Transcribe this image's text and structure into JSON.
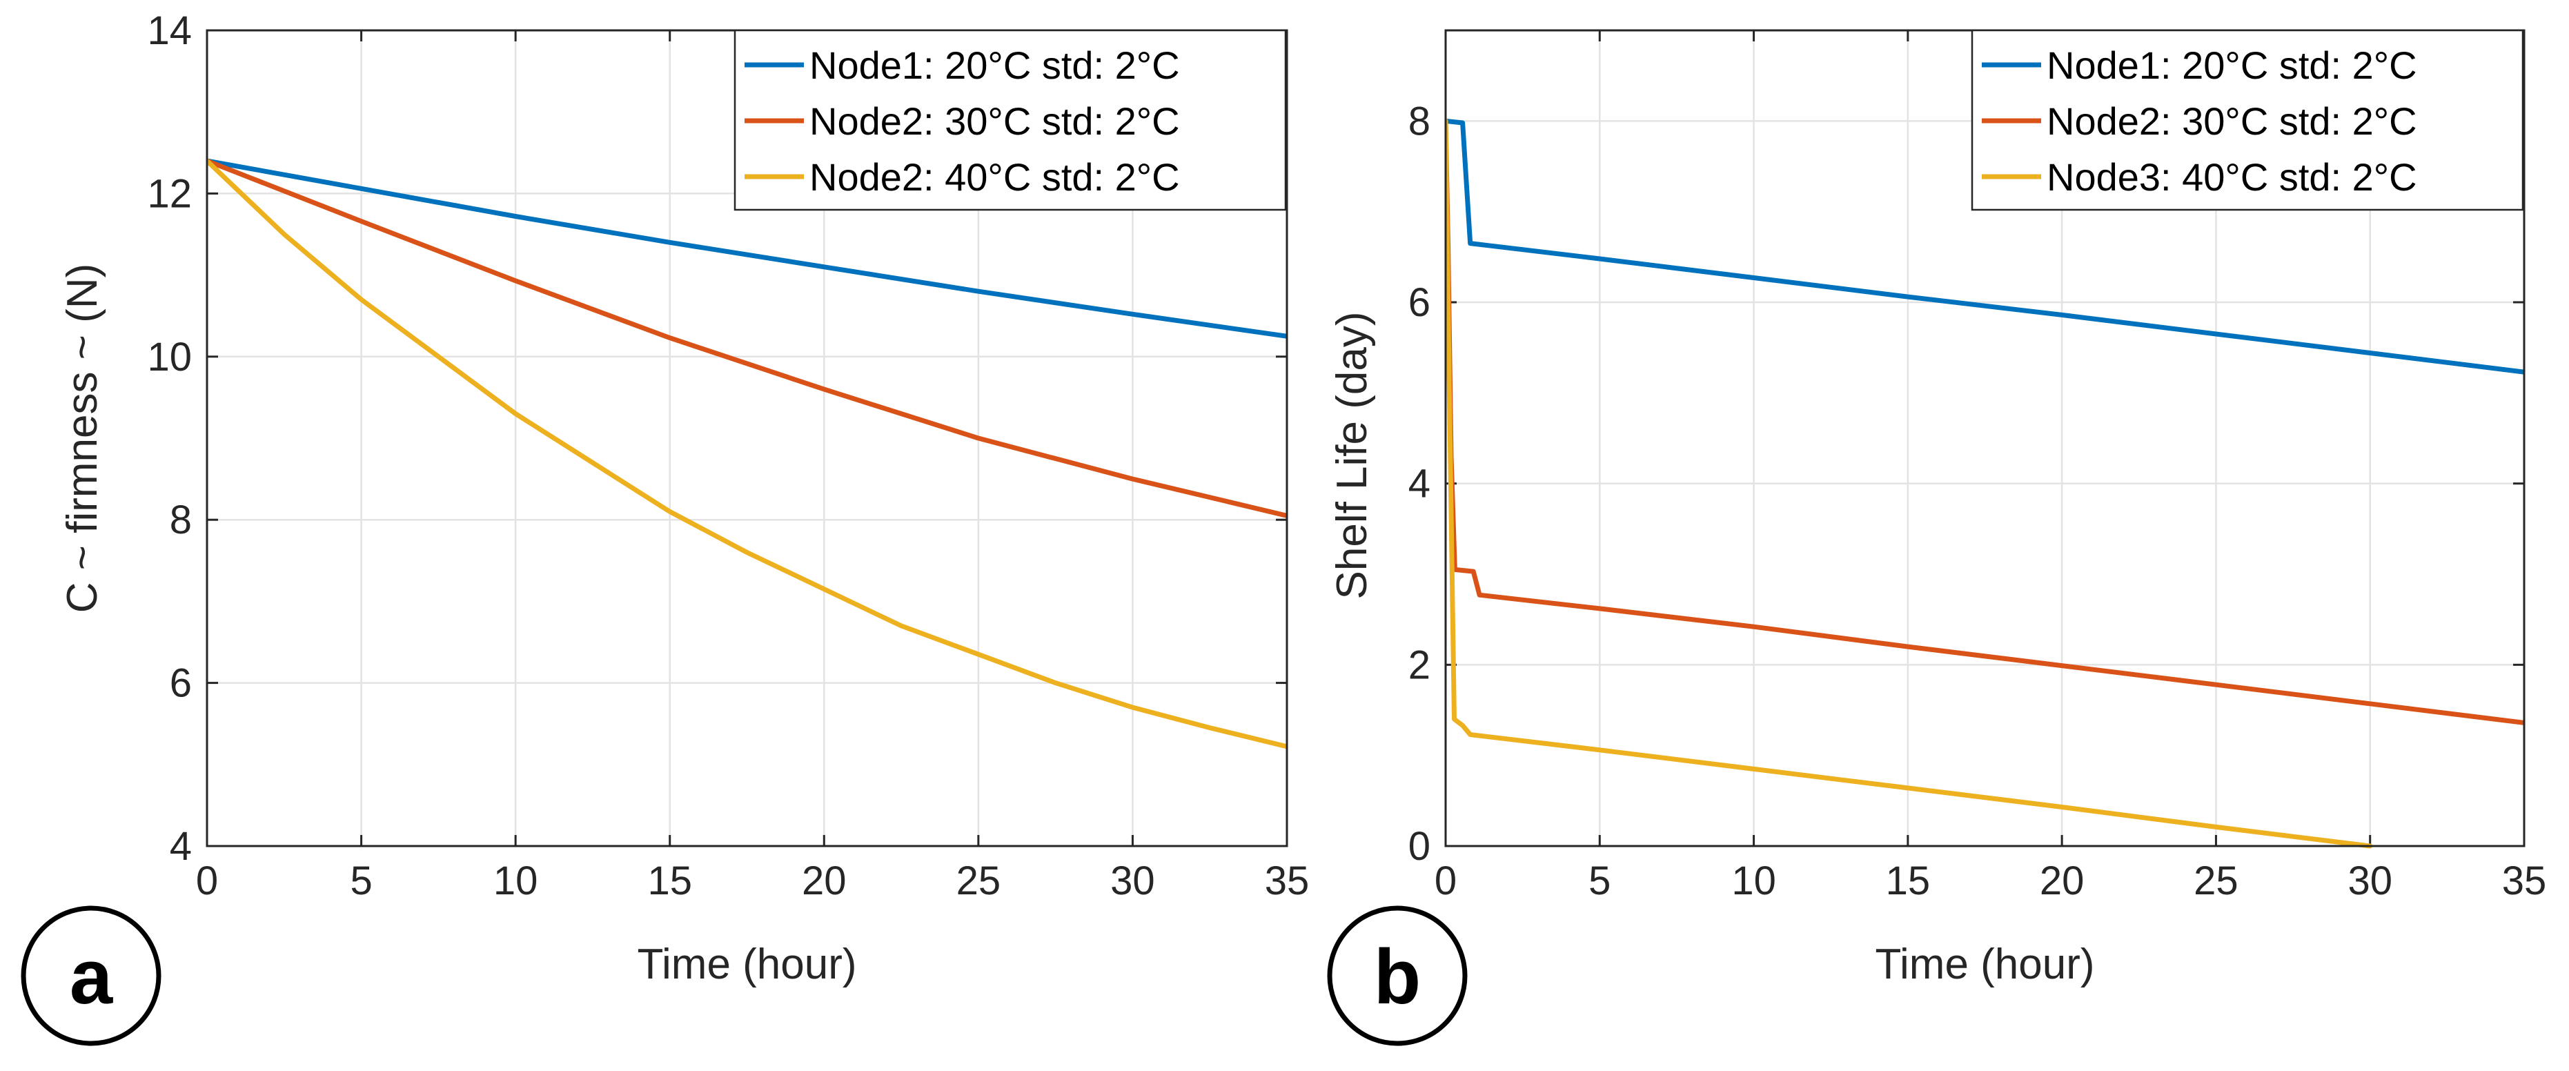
{
  "colors": {
    "node1": "#0072BD",
    "node2": "#D95319",
    "node3": "#EDB120",
    "axis": "#262626",
    "grid": "#e3e3e3"
  },
  "chart_data": [
    {
      "type": "line",
      "panel_label": "a",
      "xlabel": "Time (hour)",
      "ylabel": "C ~ firmness ~ (N)",
      "xlim": [
        0,
        35
      ],
      "ylim": [
        4,
        14
      ],
      "xticks": [
        0,
        5,
        10,
        15,
        20,
        25,
        30,
        35
      ],
      "yticks": [
        4,
        6,
        8,
        10,
        12,
        14
      ],
      "grid": true,
      "legend_position": "top-right",
      "series": [
        {
          "name": "Node1: 20°C std: 2°C",
          "color": "#0072BD",
          "points": [
            [
              0,
              12.4
            ],
            [
              5,
              12.06
            ],
            [
              10,
              11.72
            ],
            [
              15,
              11.4
            ],
            [
              20,
              11.1
            ],
            [
              25,
              10.8
            ],
            [
              30,
              10.52
            ],
            [
              35,
              10.25
            ]
          ]
        },
        {
          "name": "Node2: 30°C std: 2°C",
          "color": "#D95319",
          "points": [
            [
              0,
              12.4
            ],
            [
              5,
              11.66
            ],
            [
              10,
              10.93
            ],
            [
              15,
              10.23
            ],
            [
              20,
              9.6
            ],
            [
              25,
              9.0
            ],
            [
              30,
              8.5
            ],
            [
              35,
              8.05
            ]
          ]
        },
        {
          "name": "Node2: 40°C std: 2°C",
          "color": "#EDB120",
          "points": [
            [
              0,
              12.4
            ],
            [
              2.5,
              11.5
            ],
            [
              5,
              10.7
            ],
            [
              7.5,
              10.0
            ],
            [
              10,
              9.3
            ],
            [
              12.5,
              8.7
            ],
            [
              15,
              8.1
            ],
            [
              17.5,
              7.6
            ],
            [
              20,
              7.15
            ],
            [
              22.5,
              6.7
            ],
            [
              25,
              6.35
            ],
            [
              27.5,
              6.0
            ],
            [
              30,
              5.7
            ],
            [
              32.5,
              5.45
            ],
            [
              35,
              5.22
            ]
          ]
        }
      ]
    },
    {
      "type": "line",
      "panel_label": "b",
      "xlabel": "Time (hour)",
      "ylabel": "Shelf Life (day)",
      "xlim": [
        0,
        35
      ],
      "ylim": [
        0,
        9
      ],
      "xticks": [
        0,
        5,
        10,
        15,
        20,
        25,
        30,
        35
      ],
      "yticks": [
        0,
        2,
        4,
        6,
        8
      ],
      "grid": true,
      "legend_position": "top-right",
      "series": [
        {
          "name": "Node1: 20°C std: 2°C",
          "color": "#0072BD",
          "points": [
            [
              0,
              8.0
            ],
            [
              0.55,
              7.98
            ],
            [
              0.8,
              6.65
            ],
            [
              5,
              6.48
            ],
            [
              10,
              6.27
            ],
            [
              15,
              6.06
            ],
            [
              20,
              5.86
            ],
            [
              25,
              5.65
            ],
            [
              30,
              5.44
            ],
            [
              35,
              5.23
            ]
          ]
        },
        {
          "name": "Node2: 30°C std: 2°C",
          "color": "#D95319",
          "points": [
            [
              0,
              8.0
            ],
            [
              0.08,
              6.6
            ],
            [
              0.18,
              4.3
            ],
            [
              0.3,
              3.05
            ],
            [
              0.9,
              3.03
            ],
            [
              1.1,
              2.77
            ],
            [
              5,
              2.62
            ],
            [
              10,
              2.42
            ],
            [
              15,
              2.2
            ],
            [
              20,
              1.99
            ],
            [
              25,
              1.78
            ],
            [
              30,
              1.57
            ],
            [
              35,
              1.36
            ]
          ]
        },
        {
          "name": "Node3: 40°C std: 2°C",
          "color": "#EDB120",
          "points": [
            [
              0,
              8.0
            ],
            [
              0.12,
              5.0
            ],
            [
              0.28,
              1.4
            ],
            [
              0.55,
              1.33
            ],
            [
              0.8,
              1.23
            ],
            [
              5,
              1.06
            ],
            [
              10,
              0.85
            ],
            [
              15,
              0.64
            ],
            [
              20,
              0.43
            ],
            [
              25,
              0.21
            ],
            [
              30,
              0.0
            ]
          ]
        }
      ]
    }
  ]
}
